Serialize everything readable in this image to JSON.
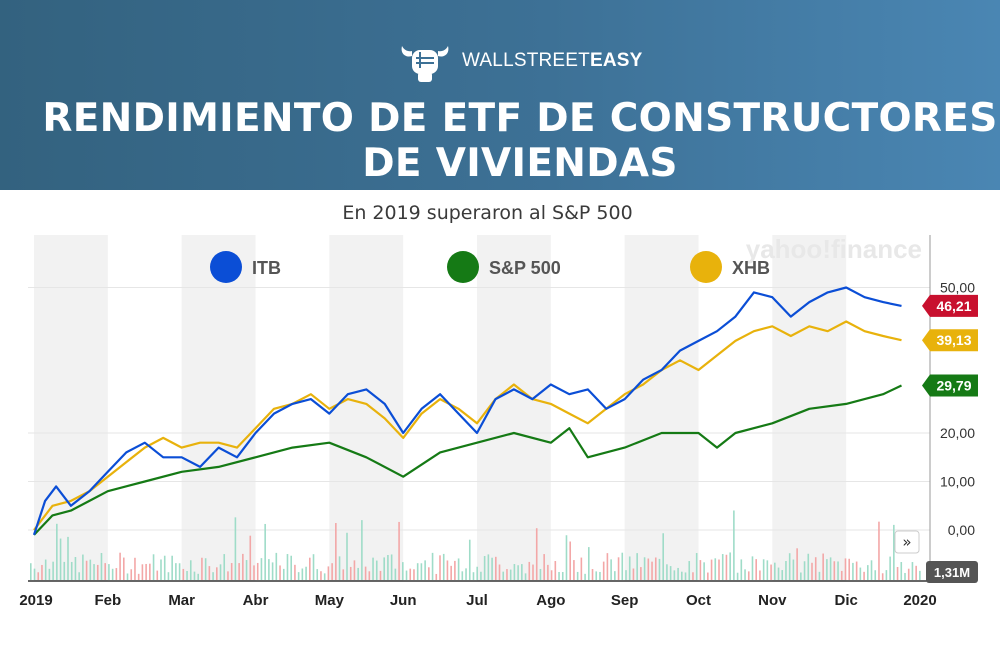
{
  "header": {
    "brand_light": "WALLSTREET",
    "brand_bold": "EASY",
    "title_line1": "RENDIMIENTO DE ETF DE CONSTRUCTORES",
    "title_line2": "DE VIVIENDAS",
    "subtitle": "En 2019 superaron al S&P 500"
  },
  "watermark": "yahoo!finance",
  "chart_data": {
    "type": "line",
    "x_labels": [
      "2019",
      "Feb",
      "Mar",
      "Abr",
      "May",
      "Jun",
      "Jul",
      "Ago",
      "Sep",
      "Oct",
      "Nov",
      "Dic",
      "2020"
    ],
    "y_ticks": [
      "0,00",
      "10,00",
      "20,00",
      "50,00"
    ],
    "ylim": [
      -7,
      62
    ],
    "grid": true,
    "legend_position": "top",
    "series": [
      {
        "name": "ITB",
        "color": "#0b4ed6",
        "last_value_label": "46,21",
        "label_color": "#c8102e",
        "points": [
          [
            0,
            -1
          ],
          [
            0.3,
            6
          ],
          [
            0.6,
            9
          ],
          [
            1,
            5
          ],
          [
            1.5,
            8
          ],
          [
            2,
            12
          ],
          [
            2.5,
            16
          ],
          [
            3,
            18
          ],
          [
            3.5,
            15
          ],
          [
            4,
            15
          ],
          [
            4.5,
            13
          ],
          [
            5,
            17
          ],
          [
            5.5,
            15
          ],
          [
            6,
            20
          ],
          [
            6.5,
            24
          ],
          [
            7,
            26
          ],
          [
            7.5,
            27
          ],
          [
            8,
            24
          ],
          [
            8.5,
            28
          ],
          [
            9,
            29
          ],
          [
            9.5,
            26
          ],
          [
            10,
            20
          ],
          [
            10.5,
            25
          ],
          [
            11,
            28
          ],
          [
            11.5,
            24
          ],
          [
            12,
            20
          ],
          [
            12.5,
            27
          ],
          [
            13,
            29
          ],
          [
            13.5,
            27
          ],
          [
            14,
            30
          ],
          [
            14.5,
            28
          ],
          [
            15,
            29
          ],
          [
            15.5,
            25
          ],
          [
            16,
            27
          ],
          [
            16.5,
            31
          ],
          [
            17,
            33
          ],
          [
            17.5,
            37
          ],
          [
            18,
            39
          ],
          [
            18.5,
            41
          ],
          [
            19,
            44
          ],
          [
            19.5,
            49
          ],
          [
            20,
            48
          ],
          [
            20.5,
            44
          ],
          [
            21,
            47
          ],
          [
            21.5,
            49
          ],
          [
            22,
            50
          ],
          [
            22.5,
            48
          ],
          [
            23,
            47
          ],
          [
            23.5,
            46.21
          ]
        ]
      },
      {
        "name": "S&P 500",
        "color": "#157a15",
        "last_value_label": "29,79",
        "label_color": "#157a15",
        "points": [
          [
            0,
            -1
          ],
          [
            0.5,
            3
          ],
          [
            1,
            4
          ],
          [
            1.5,
            6
          ],
          [
            2,
            8
          ],
          [
            3,
            10
          ],
          [
            4,
            12
          ],
          [
            5,
            13
          ],
          [
            6,
            15
          ],
          [
            7,
            17
          ],
          [
            8,
            18
          ],
          [
            9,
            15
          ],
          [
            10,
            11
          ],
          [
            11,
            16
          ],
          [
            12,
            18
          ],
          [
            13,
            20
          ],
          [
            14,
            18
          ],
          [
            14.5,
            21
          ],
          [
            15,
            15
          ],
          [
            16,
            17
          ],
          [
            17,
            20
          ],
          [
            18,
            20
          ],
          [
            18.5,
            17
          ],
          [
            19,
            20
          ],
          [
            20,
            22
          ],
          [
            21,
            25
          ],
          [
            22,
            26
          ],
          [
            22.5,
            27
          ],
          [
            23,
            28
          ],
          [
            23.5,
            29.79
          ]
        ]
      },
      {
        "name": "XHB",
        "color": "#e8b20c",
        "last_value_label": "39,13",
        "label_color": "#e8b20c",
        "points": [
          [
            0,
            0
          ],
          [
            0.5,
            5
          ],
          [
            1,
            6
          ],
          [
            1.5,
            8
          ],
          [
            2,
            11
          ],
          [
            2.5,
            14
          ],
          [
            3,
            17
          ],
          [
            3.5,
            19
          ],
          [
            4,
            17
          ],
          [
            4.5,
            18
          ],
          [
            5,
            18
          ],
          [
            5.5,
            17
          ],
          [
            6,
            21
          ],
          [
            6.5,
            25
          ],
          [
            7,
            26
          ],
          [
            7.5,
            28
          ],
          [
            8,
            25
          ],
          [
            8.5,
            27
          ],
          [
            9,
            26
          ],
          [
            9.5,
            23
          ],
          [
            10,
            19
          ],
          [
            10.5,
            24
          ],
          [
            11,
            27
          ],
          [
            11.5,
            25
          ],
          [
            12,
            22
          ],
          [
            12.5,
            27
          ],
          [
            13,
            30
          ],
          [
            13.5,
            27
          ],
          [
            14,
            26
          ],
          [
            14.5,
            24
          ],
          [
            15,
            22
          ],
          [
            15.5,
            25
          ],
          [
            16,
            28
          ],
          [
            16.5,
            30
          ],
          [
            17,
            33
          ],
          [
            17.5,
            35
          ],
          [
            18,
            33
          ],
          [
            18.5,
            36
          ],
          [
            19,
            39
          ],
          [
            19.5,
            41
          ],
          [
            20,
            42
          ],
          [
            20.5,
            40
          ],
          [
            21,
            42
          ],
          [
            21.5,
            41
          ],
          [
            22,
            43
          ],
          [
            22.5,
            41
          ],
          [
            23,
            40
          ],
          [
            23.5,
            39.13
          ]
        ]
      }
    ],
    "volume_label": "1,31M"
  },
  "nav_button": "»"
}
